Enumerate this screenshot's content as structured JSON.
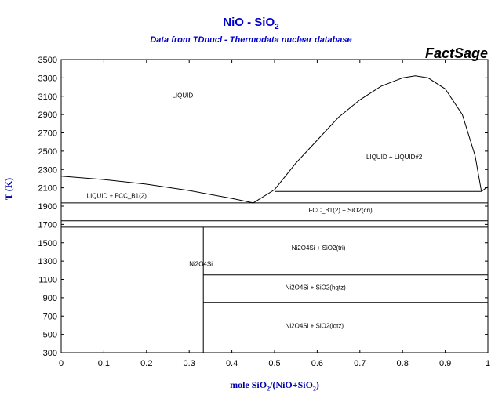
{
  "header": {
    "title_main": "NiO - SiO",
    "title_sub": "2",
    "subtitle": "Data from TDnucl - Thermodata nuclear database",
    "brand": "FactSage"
  },
  "axes": {
    "xlabel_a": "mole SiO",
    "xlabel_b": "2",
    "xlabel_c": "/(NiO+SiO",
    "xlabel_d": "2",
    "xlabel_e": ")",
    "ylabel": "T (K)"
  },
  "chart_data": {
    "type": "line",
    "title": "NiO - SiO2",
    "subtitle": "Data from TDnucl - Thermodata nuclear database",
    "xlabel": "mole SiO2/(NiO+SiO2)",
    "ylabel": "T (K)",
    "xlim": [
      0,
      1
    ],
    "ylim": [
      300,
      3500
    ],
    "x_ticks": [
      "0",
      "0.1",
      "0.2",
      "0.3",
      "0.4",
      "0.5",
      "0.6",
      "0.7",
      "0.8",
      "0.9",
      "1"
    ],
    "y_ticks": [
      "300",
      "500",
      "700",
      "900",
      "1100",
      "1300",
      "1500",
      "1700",
      "1900",
      "2100",
      "2300",
      "2500",
      "2700",
      "2900",
      "3100",
      "3300",
      "3500"
    ],
    "grid": false,
    "legend": "none",
    "series": [
      {
        "x": [
          0,
          0.1,
          0.2,
          0.3,
          0.4,
          0.45
        ],
        "y": [
          2228,
          2190,
          2140,
          2070,
          1985,
          1935
        ]
      },
      {
        "x": [
          0.45,
          0.5,
          0.55,
          0.6,
          0.65,
          0.7,
          0.75,
          0.8,
          0.83,
          0.86,
          0.9,
          0.94,
          0.97,
          0.985
        ],
        "y": [
          1935,
          2080,
          2370,
          2620,
          2870,
          3060,
          3210,
          3300,
          3322,
          3300,
          3180,
          2900,
          2450,
          2060
        ]
      },
      {
        "x": [
          0.985,
          1
        ],
        "y": [
          2060,
          2115
        ]
      },
      {
        "x": [
          0.5,
          0.985
        ],
        "y": [
          2060,
          2060
        ]
      },
      {
        "x": [
          0,
          1
        ],
        "y": [
          1935,
          1935
        ]
      },
      {
        "x": [
          0,
          1
        ],
        "y": [
          1740,
          1740
        ]
      },
      {
        "x": [
          0,
          1
        ],
        "y": [
          1670,
          1670
        ]
      },
      {
        "x": [
          0.333,
          1
        ],
        "y": [
          1150,
          1150
        ]
      },
      {
        "x": [
          0.333,
          1
        ],
        "y": [
          850,
          850
        ]
      },
      {
        "x": [
          0.333,
          0.333
        ],
        "y": [
          300,
          1670
        ]
      }
    ],
    "annotations": [
      {
        "text": "LIQUID",
        "x": 0.26,
        "y": 3085
      },
      {
        "text": "LIQUID + LIQUID#2",
        "x": 0.715,
        "y": 2415
      },
      {
        "text": "LIQUID + FCC_B1(2)",
        "x": 0.06,
        "y": 1990
      },
      {
        "text": "FCC_B1(2) + SiO2(cri)",
        "x": 0.58,
        "y": 1830
      },
      {
        "text": "Ni2O4Si",
        "x": 0.3,
        "y": 1245
      },
      {
        "text": "Ni2O4Si + SiO2(tri)",
        "x": 0.54,
        "y": 1420
      },
      {
        "text": "Ni2O4Si + SiO2(hqtz)",
        "x": 0.525,
        "y": 990
      },
      {
        "text": "Ni2O4Si + SiO2(lqtz)",
        "x": 0.525,
        "y": 570
      }
    ]
  }
}
